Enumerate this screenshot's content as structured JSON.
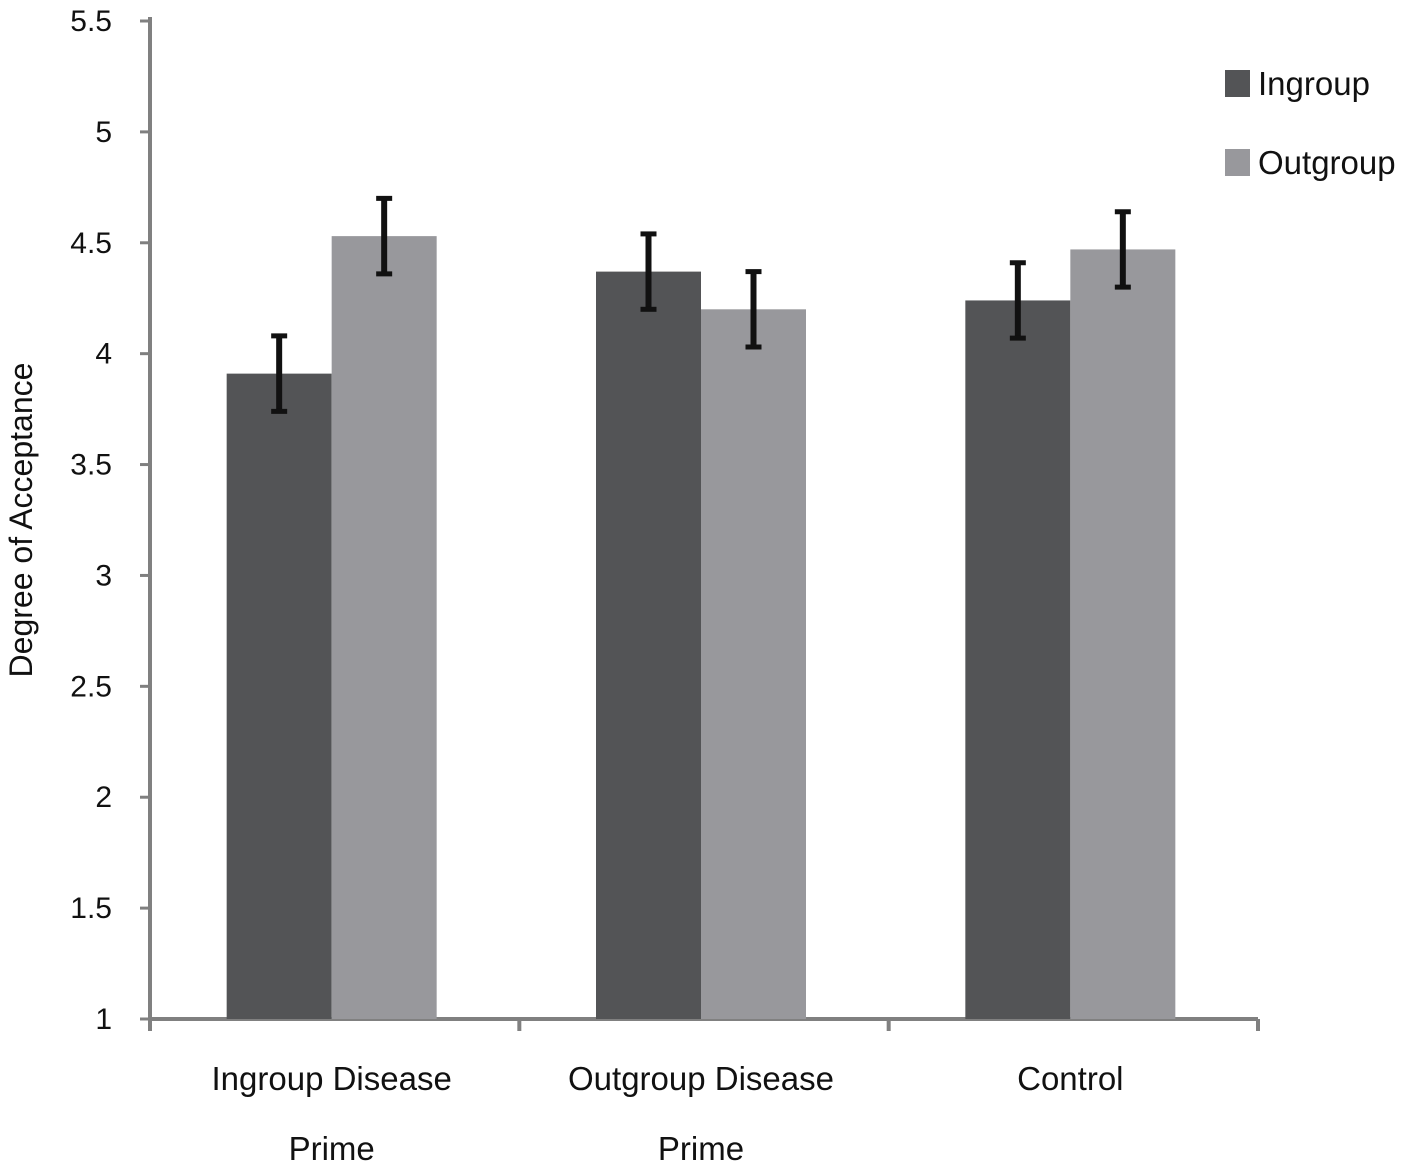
{
  "chart_data": {
    "type": "bar",
    "title": "",
    "xlabel": "",
    "ylabel": "Degree of Acceptance",
    "ylim": [
      1,
      5.5
    ],
    "yticks": [
      "1",
      "1.5",
      "2",
      "2.5",
      "3",
      "3.5",
      "4",
      "4.5",
      "5",
      "5.5"
    ],
    "categories": [
      {
        "line1": "Ingroup Disease",
        "line2": "Prime"
      },
      {
        "line1": "Outgroup Disease",
        "line2": "Prime"
      },
      {
        "line1": "Control",
        "line2": ""
      }
    ],
    "series": [
      {
        "name": "Ingroup",
        "color": "#535456",
        "values": [
          3.91,
          4.37,
          4.24
        ],
        "errors": [
          0.17,
          0.17,
          0.17
        ]
      },
      {
        "name": "Outgroup",
        "color": "#98989c",
        "values": [
          4.53,
          4.2,
          4.47
        ],
        "errors": [
          0.17,
          0.17,
          0.17
        ]
      }
    ],
    "grid": false,
    "legend_position": "top-right",
    "axis_color": "#808080",
    "error_bar_color": "#111111"
  }
}
